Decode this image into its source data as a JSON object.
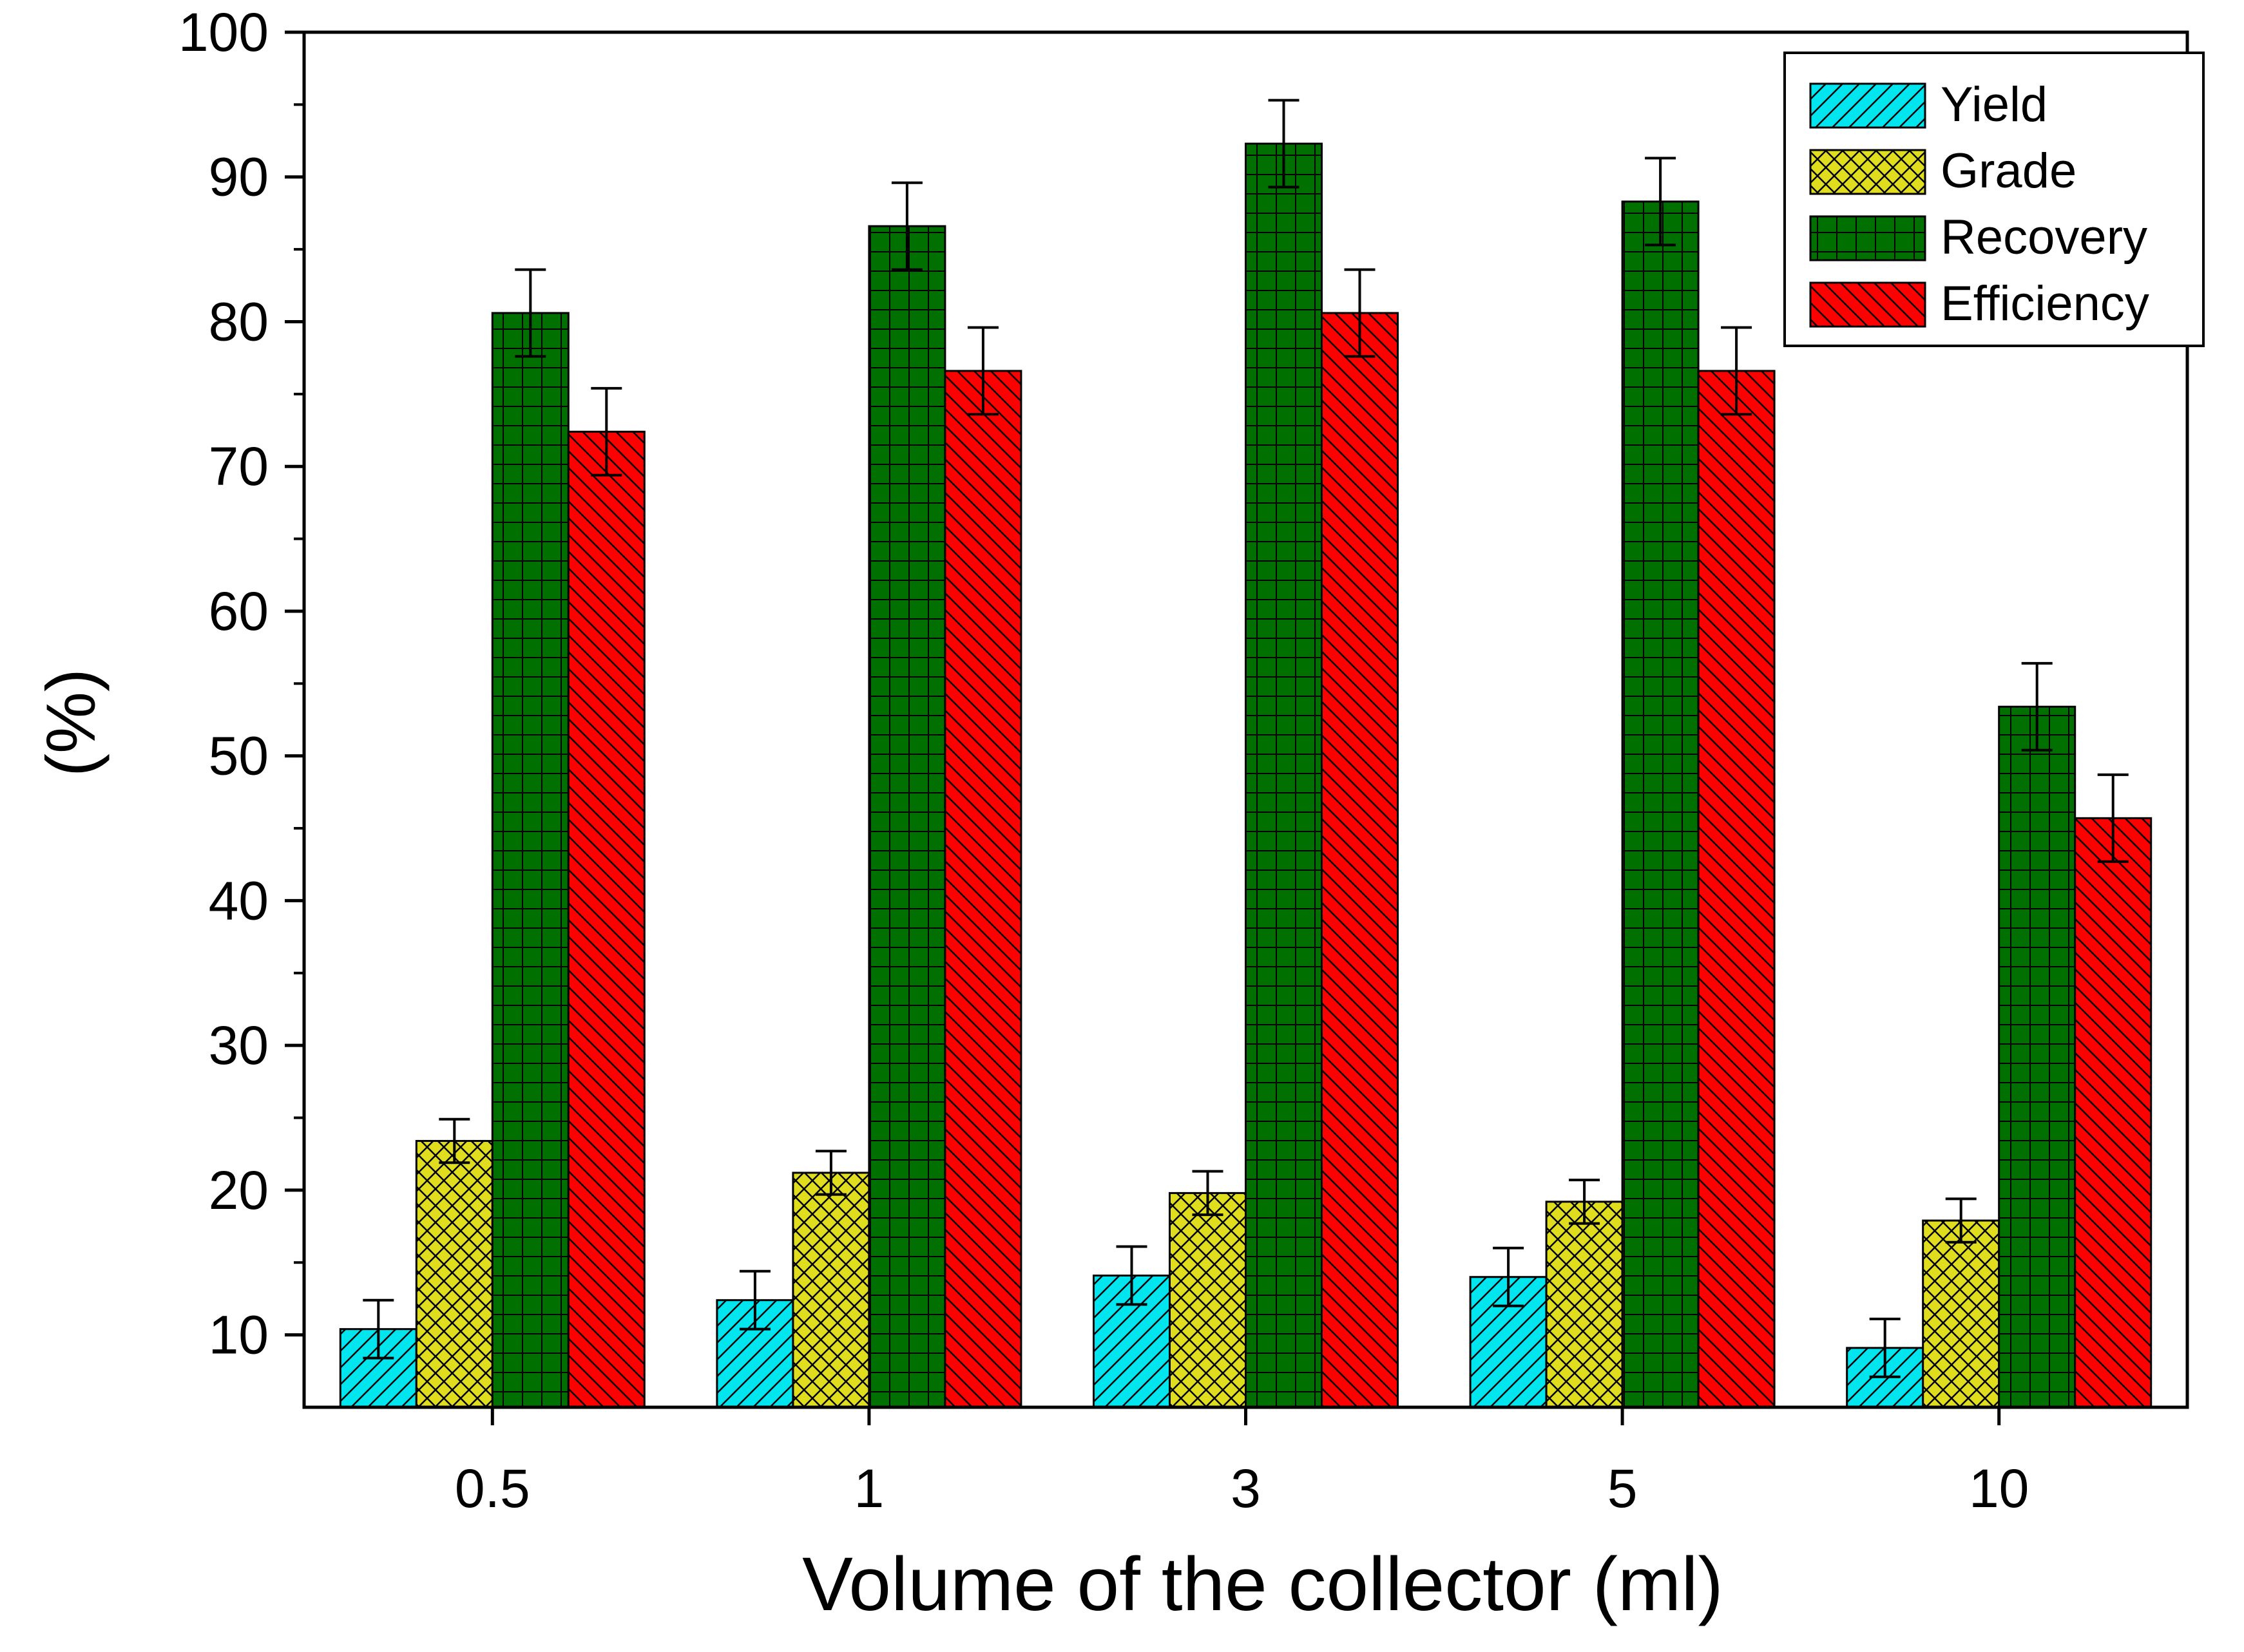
{
  "chart_data": {
    "type": "bar",
    "title": "",
    "xlabel": "Volume of the collector (ml)",
    "ylabel": "(%)",
    "categories": [
      "0.5",
      "1",
      "3",
      "5",
      "10"
    ],
    "ylim": [
      5,
      100
    ],
    "yticks": [
      10,
      20,
      30,
      40,
      50,
      60,
      70,
      80,
      90,
      100
    ],
    "ytick_labels": [
      "10",
      "20",
      "30",
      "40",
      "50",
      "60",
      "70",
      "80",
      "90",
      "100"
    ],
    "grid": false,
    "legend_position": "top-right",
    "series": [
      {
        "name": "Yield",
        "color": "#00E5EE",
        "pattern": "diagonal",
        "values": [
          10.4,
          12.4,
          14.1,
          14.0,
          9.1
        ],
        "errors": [
          2.0,
          2.0,
          2.0,
          2.0,
          2.0
        ]
      },
      {
        "name": "Grade",
        "color": "#E0DC1E",
        "pattern": "crosshatch",
        "values": [
          23.4,
          21.2,
          19.8,
          19.2,
          17.9
        ],
        "errors": [
          1.5,
          1.5,
          1.5,
          1.5,
          1.5
        ]
      },
      {
        "name": "Recovery",
        "color": "#007000",
        "pattern": "grid",
        "values": [
          80.6,
          86.6,
          92.3,
          88.3,
          53.4
        ],
        "errors": [
          3.0,
          3.0,
          3.0,
          3.0,
          3.0
        ]
      },
      {
        "name": "Efficiency",
        "color": "#FF0000",
        "pattern": "backdiagonal",
        "values": [
          72.4,
          76.6,
          80.6,
          76.6,
          45.7
        ],
        "errors": [
          3.0,
          3.0,
          3.0,
          3.0,
          3.0
        ]
      }
    ]
  }
}
